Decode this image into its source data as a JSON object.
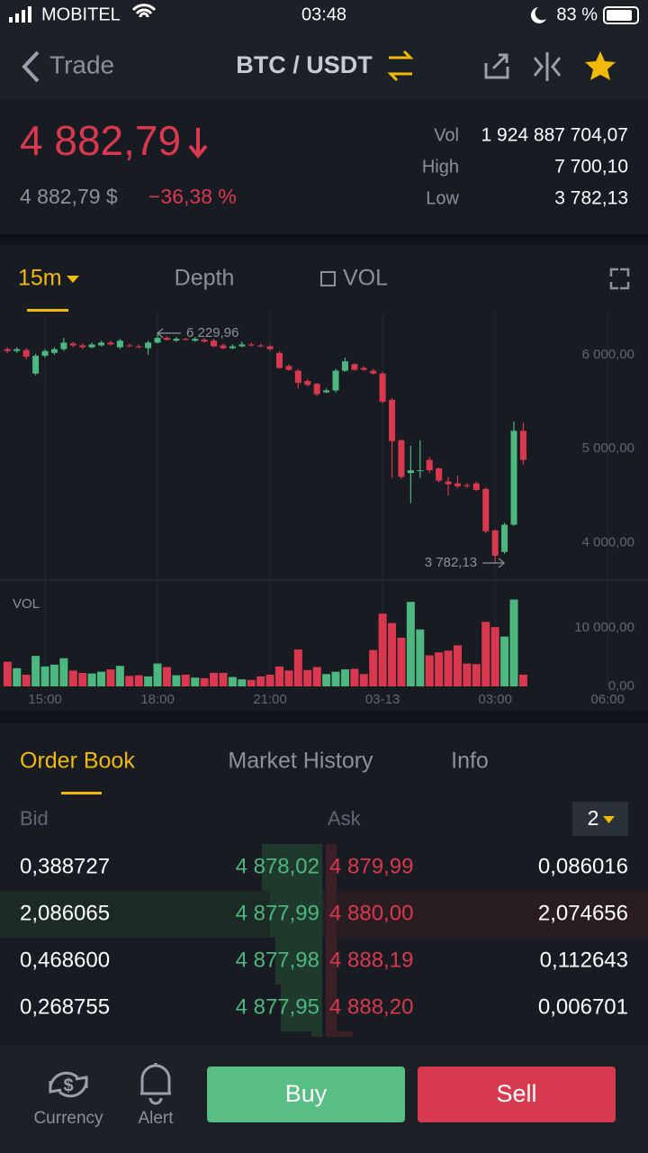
{
  "status_bar": {
    "carrier": "MOBITEL",
    "time": "03:48",
    "battery": "83 %"
  },
  "header": {
    "back": "Trade",
    "pair": "BTC / USDT"
  },
  "ticker": {
    "price": "4 882,79",
    "usd_price": "4 882,79 $",
    "change": "−36,38 %",
    "stats": [
      {
        "label": "Vol",
        "value": "1 924 887 704,07"
      },
      {
        "label": "High",
        "value": "7 700,10"
      },
      {
        "label": "Low",
        "value": "3 782,13"
      }
    ]
  },
  "chart_tabs": [
    "15m",
    "Depth",
    "VOL"
  ],
  "chart_data": {
    "type": "candlestick",
    "up_color": "#4cb77f",
    "down_color": "#d9384f",
    "open": [
      6060,
      6040,
      6050,
      5800,
      5990,
      6020,
      6060,
      6120,
      6100,
      6080,
      6100,
      6130,
      6080,
      6100,
      6090,
      6070,
      6130,
      6180,
      6150,
      6170,
      6150,
      6160,
      6150,
      6100,
      6070,
      6090,
      6110,
      6100,
      6090,
      6020,
      5880,
      5830,
      5720,
      5690,
      5600,
      5620,
      5830,
      5900,
      5860,
      5830,
      5800,
      5520,
      5090,
      4740,
      4760,
      4880,
      4790,
      4650,
      4630,
      4610,
      4630,
      4570,
      4130,
      3900,
      4190,
      5190
    ],
    "high": [
      6080,
      6080,
      6070,
      6010,
      6060,
      6080,
      6180,
      6140,
      6120,
      6130,
      6150,
      6150,
      6170,
      6120,
      6110,
      6150,
      6229.96,
      6200,
      6190,
      6180,
      6190,
      6180,
      6170,
      6120,
      6110,
      6140,
      6130,
      6120,
      6100,
      6040,
      5900,
      5850,
      5740,
      5700,
      5640,
      5850,
      5970,
      5910,
      5880,
      5850,
      5820,
      5540,
      5100,
      5030,
      5090,
      4910,
      4800,
      4700,
      4710,
      4630,
      4650,
      4590,
      4140,
      4210,
      5290,
      5280
    ],
    "low": [
      6020,
      6020,
      5950,
      5780,
      5970,
      6000,
      6040,
      6080,
      6060,
      6070,
      6090,
      6100,
      6060,
      6080,
      6070,
      6000,
      6120,
      6150,
      6140,
      6150,
      6140,
      6130,
      6080,
      6060,
      6060,
      6080,
      6090,
      6080,
      6040,
      5850,
      5830,
      5640,
      5660,
      5560,
      5590,
      5600,
      5820,
      5830,
      5830,
      5790,
      5480,
      4690,
      4680,
      4420,
      4690,
      4740,
      4640,
      4500,
      4580,
      4580,
      4550,
      4100,
      3782.13,
      3880,
      4180,
      4830
    ],
    "close": [
      6040,
      6060,
      5980,
      5990,
      6040,
      6060,
      6130,
      6100,
      6080,
      6110,
      6130,
      6110,
      6150,
      6090,
      6080,
      6130,
      6180,
      6160,
      6170,
      6160,
      6170,
      6140,
      6090,
      6070,
      6090,
      6110,
      6100,
      6090,
      6060,
      5860,
      5840,
      5700,
      5680,
      5580,
      5620,
      5830,
      5930,
      5840,
      5840,
      5800,
      5500,
      5080,
      4700,
      4770,
      4770,
      4770,
      4660,
      4620,
      4600,
      4600,
      4560,
      4120,
      3860,
      4190,
      5190,
      4880
    ],
    "xlim": [
      -0.8,
      68.3
    ],
    "xticks": [
      {
        "value": 4,
        "label": "15:00"
      },
      {
        "value": 16,
        "label": "18:00"
      },
      {
        "value": 28,
        "label": "21:00"
      },
      {
        "value": 40,
        "label": "03-13"
      },
      {
        "value": 52,
        "label": "03:00"
      },
      {
        "value": 64,
        "label": "06:00"
      }
    ],
    "ylim": [
      3600,
      6440
    ],
    "yticks": [
      {
        "value": 4000,
        "label": "4 000,00"
      },
      {
        "value": 5000,
        "label": "5 000,00"
      },
      {
        "value": 6000,
        "label": "6 000,00"
      }
    ],
    "max_label": {
      "value": 6229.96,
      "label": "6 229,96"
    },
    "min_label": {
      "value": 3782.13,
      "label": "3 782,13"
    },
    "volume": {
      "label": "VOL",
      "values": [
        4200,
        3100,
        2000,
        5200,
        3400,
        3700,
        4800,
        2700,
        2300,
        2200,
        2500,
        2900,
        3500,
        1800,
        1900,
        1700,
        3900,
        3300,
        1900,
        2000,
        1500,
        1400,
        2300,
        2300,
        1600,
        1200,
        1100,
        1700,
        2000,
        3400,
        2700,
        6300,
        2800,
        3300,
        2100,
        2500,
        2900,
        3000,
        2100,
        6200,
        12400,
        10800,
        8300,
        14400,
        9700,
        5300,
        5800,
        6100,
        7000,
        3900,
        3800,
        11000,
        10100,
        8500,
        14800,
        2000
      ],
      "ylim": [
        0,
        17500
      ],
      "yticks": [
        {
          "value": 0,
          "label": "0,00"
        },
        {
          "value": 10000,
          "label": "10 000,00"
        }
      ]
    }
  },
  "book_tabs": [
    "Order Book",
    "Market History",
    "Info"
  ],
  "order_book": {
    "bid_header": "Bid",
    "ask_header": "Ask",
    "precision": "2",
    "rows": [
      [
        "0,388727",
        "4 878,02",
        "4 879,99",
        "0,086016"
      ],
      [
        "2,086065",
        "4 877,99",
        "4 880,00",
        "2,074656"
      ],
      [
        "0,468600",
        "4 877,98",
        "4 888,19",
        "0,112643"
      ],
      [
        "0,268755",
        "4 877,95",
        "4 888,20",
        "0,006701"
      ]
    ]
  },
  "bottom_bar": {
    "currency": "Currency",
    "alert": "Alert",
    "buy": "Buy",
    "sell": "Sell"
  }
}
